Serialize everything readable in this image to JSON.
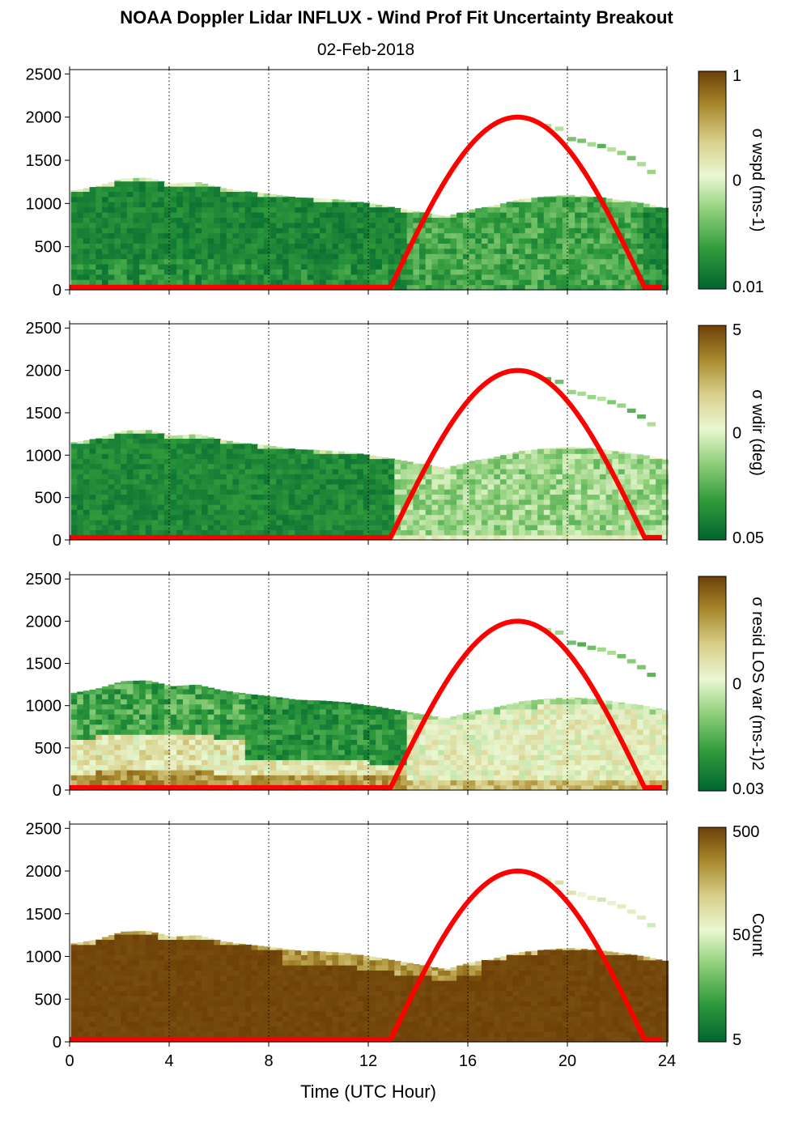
{
  "figure": {
    "title": "NOAA Doppler Lidar INFLUX - Wind Prof Fit Uncertainty Breakout",
    "subtitle": "02-Feb-2018",
    "xlabel": "Time (UTC Hour)"
  },
  "colors": {
    "sun_curve": "#ff0000",
    "colormap": [
      "#006630",
      "#2f9a3c",
      "#8fcf7a",
      "#eaf7d2",
      "#d8cf8a",
      "#a88a2e",
      "#6e4008"
    ]
  },
  "chart_data": [
    {
      "type": "heatmap",
      "panel": "wspd",
      "x_ticks": [
        0,
        4,
        8,
        12,
        16,
        20,
        24
      ],
      "y_ticks": [
        0,
        500,
        1000,
        1500,
        2000,
        2500
      ],
      "xlim": [
        0,
        24
      ],
      "ylim": [
        0,
        2550
      ],
      "grid": "vertical dotted at x ticks",
      "colorbar": {
        "label": "σ wspd (ms-1)",
        "tick_labels": [
          "1",
          "0",
          "0.01"
        ],
        "scale": "log",
        "range": [
          0.01,
          1
        ]
      },
      "profile_top_m": [
        [
          0,
          1150
        ],
        [
          1,
          1200
        ],
        [
          2,
          1290
        ],
        [
          3,
          1300
        ],
        [
          4,
          1230
        ],
        [
          5,
          1250
        ],
        [
          6,
          1180
        ],
        [
          7,
          1140
        ],
        [
          8,
          1110
        ],
        [
          9,
          1070
        ],
        [
          10,
          1060
        ],
        [
          11,
          1040
        ],
        [
          12,
          1000
        ],
        [
          13,
          950
        ],
        [
          14,
          900
        ],
        [
          15,
          850
        ],
        [
          16,
          930
        ],
        [
          17,
          980
        ],
        [
          18,
          1050
        ],
        [
          19,
          1080
        ],
        [
          20,
          1100
        ],
        [
          21,
          1080
        ],
        [
          22,
          1040
        ],
        [
          23,
          1000
        ],
        [
          23.8,
          950
        ]
      ],
      "dominant_level": "low (dark green)",
      "sun_elevation_curve": {
        "x": [
          0,
          12.9,
          18,
          23.1,
          24
        ],
        "y_m": [
          30,
          30,
          2000,
          30,
          30
        ]
      }
    },
    {
      "type": "heatmap",
      "panel": "wdir",
      "x_ticks": [
        0,
        4,
        8,
        12,
        16,
        20,
        24
      ],
      "y_ticks": [
        0,
        500,
        1000,
        1500,
        2000,
        2500
      ],
      "xlim": [
        0,
        24
      ],
      "ylim": [
        0,
        2550
      ],
      "grid": "vertical dotted at x ticks",
      "colorbar": {
        "label": "σ wdir (deg)",
        "tick_labels": [
          "5",
          "0",
          "0.05"
        ],
        "scale": "log",
        "range": [
          0.05,
          5
        ]
      },
      "profile_top_m": [
        [
          0,
          1150
        ],
        [
          1,
          1200
        ],
        [
          2,
          1290
        ],
        [
          3,
          1300
        ],
        [
          4,
          1230
        ],
        [
          5,
          1250
        ],
        [
          6,
          1180
        ],
        [
          7,
          1140
        ],
        [
          8,
          1110
        ],
        [
          9,
          1070
        ],
        [
          10,
          1060
        ],
        [
          11,
          1040
        ],
        [
          12,
          1000
        ],
        [
          13,
          950
        ],
        [
          14,
          900
        ],
        [
          15,
          850
        ],
        [
          16,
          930
        ],
        [
          17,
          980
        ],
        [
          18,
          1050
        ],
        [
          19,
          1080
        ],
        [
          20,
          1100
        ],
        [
          21,
          1080
        ],
        [
          22,
          1040
        ],
        [
          23,
          1000
        ],
        [
          23.8,
          950
        ]
      ],
      "dominant_level": "low at night, moderate (lighter green) after 13 UTC",
      "sun_elevation_curve": {
        "x": [
          0,
          12.9,
          18,
          23.1,
          24
        ],
        "y_m": [
          30,
          30,
          2000,
          30,
          30
        ]
      }
    },
    {
      "type": "heatmap",
      "panel": "resid_los_var",
      "x_ticks": [
        0,
        4,
        8,
        12,
        16,
        20,
        24
      ],
      "y_ticks": [
        0,
        500,
        1000,
        1500,
        2000,
        2500
      ],
      "xlim": [
        0,
        24
      ],
      "ylim": [
        0,
        2550
      ],
      "grid": "vertical dotted at x ticks",
      "colorbar": {
        "label": "σ resid LOS var (ms-1)2",
        "tick_labels": [
          "0",
          "0.03"
        ],
        "scale": "log"
      },
      "profile_top_m": [
        [
          0,
          1150
        ],
        [
          1,
          1200
        ],
        [
          2,
          1290
        ],
        [
          3,
          1300
        ],
        [
          4,
          1230
        ],
        [
          5,
          1250
        ],
        [
          6,
          1180
        ],
        [
          7,
          1140
        ],
        [
          8,
          1110
        ],
        [
          9,
          1070
        ],
        [
          10,
          1060
        ],
        [
          11,
          1040
        ],
        [
          12,
          1000
        ],
        [
          13,
          950
        ],
        [
          14,
          900
        ],
        [
          15,
          850
        ],
        [
          16,
          930
        ],
        [
          17,
          980
        ],
        [
          18,
          1050
        ],
        [
          19,
          1080
        ],
        [
          20,
          1100
        ],
        [
          21,
          1080
        ],
        [
          22,
          1040
        ],
        [
          23,
          1000
        ],
        [
          23.8,
          950
        ]
      ],
      "dominant_level": "high (tan/brown) near surface, green aloft at night; pale after 15 UTC",
      "sun_elevation_curve": {
        "x": [
          0,
          12.9,
          18,
          23.1,
          24
        ],
        "y_m": [
          30,
          30,
          2000,
          30,
          30
        ]
      }
    },
    {
      "type": "heatmap",
      "panel": "count",
      "x_ticks": [
        0,
        4,
        8,
        12,
        16,
        20,
        24
      ],
      "y_ticks": [
        0,
        500,
        1000,
        1500,
        2000,
        2500
      ],
      "xlim": [
        0,
        24
      ],
      "ylim": [
        0,
        2550
      ],
      "grid": "vertical dotted at x ticks",
      "colorbar": {
        "label": "Count",
        "tick_labels": [
          "500",
          "50",
          "5"
        ],
        "scale": "log"
      },
      "profile_top_m": [
        [
          0,
          1150
        ],
        [
          1,
          1200
        ],
        [
          2,
          1290
        ],
        [
          3,
          1300
        ],
        [
          4,
          1230
        ],
        [
          5,
          1250
        ],
        [
          6,
          1180
        ],
        [
          7,
          1140
        ],
        [
          8,
          1110
        ],
        [
          9,
          1070
        ],
        [
          10,
          1060
        ],
        [
          11,
          1040
        ],
        [
          12,
          1000
        ],
        [
          13,
          950
        ],
        [
          14,
          900
        ],
        [
          15,
          850
        ],
        [
          16,
          930
        ],
        [
          17,
          980
        ],
        [
          18,
          1050
        ],
        [
          19,
          1080
        ],
        [
          20,
          1100
        ],
        [
          21,
          1080
        ],
        [
          22,
          1040
        ],
        [
          23,
          1000
        ],
        [
          23.8,
          950
        ]
      ],
      "dominant_level": "high (dark brown)",
      "sun_elevation_curve": {
        "x": [
          0,
          12.9,
          18,
          23.1,
          24
        ],
        "y_m": [
          30,
          30,
          2000,
          30,
          30
        ]
      }
    }
  ]
}
